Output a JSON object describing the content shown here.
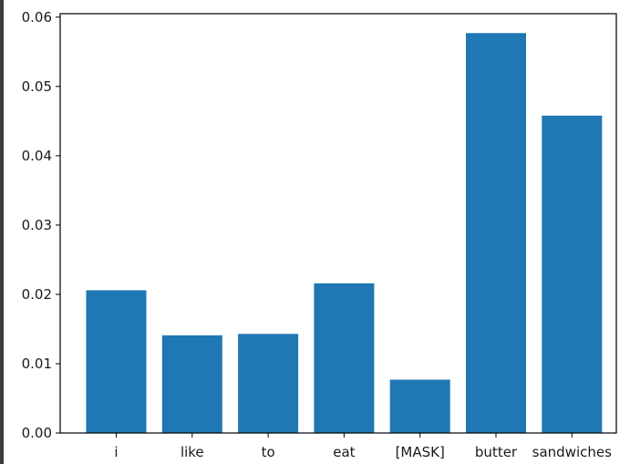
{
  "chart_data": {
    "type": "bar",
    "categories": [
      "i",
      "like",
      "to",
      "eat",
      "[MASK]",
      "butter",
      "sandwiches"
    ],
    "values": [
      0.0206,
      0.0141,
      0.0143,
      0.0216,
      0.0077,
      0.0577,
      0.0458
    ],
    "title": "",
    "xlabel": "",
    "ylabel": "",
    "ylim": [
      0,
      0.0605
    ],
    "yticks": [
      "0.00",
      "0.01",
      "0.02",
      "0.03",
      "0.04",
      "0.05",
      "0.06"
    ],
    "ytick_values": [
      0,
      0.01,
      0.02,
      0.03,
      0.04,
      0.05,
      0.06
    ],
    "bar_color": "#1f77b4",
    "grid": false,
    "legend": "none"
  }
}
